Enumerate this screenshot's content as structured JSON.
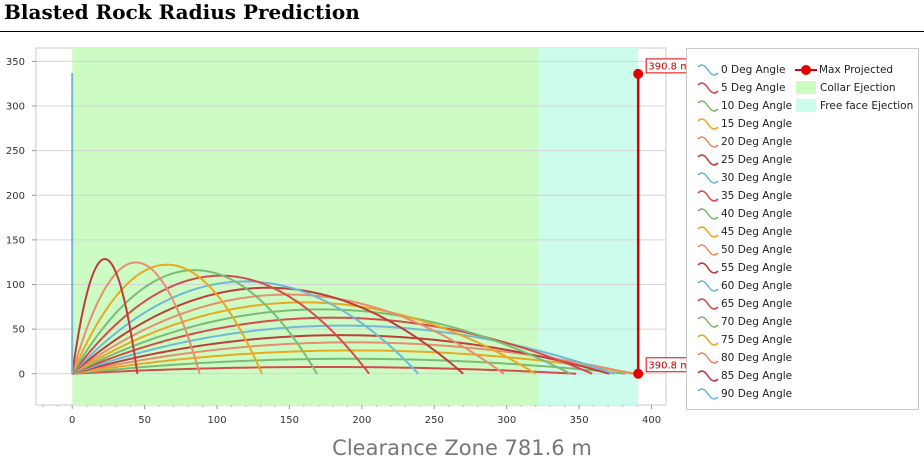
{
  "title": "Blasted Rock Radius Prediction",
  "footer": "Clearance Zone 781.6 m",
  "chart_data": {
    "type": "line",
    "xlim": [
      -25,
      410
    ],
    "ylim": [
      -35,
      365
    ],
    "x_ticks": [
      0,
      50,
      100,
      150,
      200,
      250,
      300,
      350,
      400
    ],
    "y_ticks": [
      0,
      50,
      100,
      150,
      200,
      250,
      300,
      350
    ],
    "grid": true,
    "legend_position": "right",
    "collar_ejection": {
      "name": "Collar Ejection",
      "x_range": [
        0,
        322
      ],
      "color": "#ccfcc4"
    },
    "free_face_ejection": {
      "name": "Free face Ejection",
      "x_range": [
        322,
        390.8
      ],
      "color": "#ccfcec"
    },
    "max_projected": {
      "name": "Max Projected",
      "x": 390.8,
      "y_top": 336,
      "y_bottom": 0,
      "label_top": "390.8 m",
      "label_bottom": "390.8 m",
      "color": "#e00000"
    },
    "series": [
      {
        "name": "0 Deg Angle",
        "angle": 0,
        "color": "#72b8d6",
        "range": 0
      },
      {
        "name": "5 Deg Angle",
        "angle": 5,
        "color": "#d44c4c",
        "range": 348
      },
      {
        "name": "10 Deg Angle",
        "angle": 10,
        "color": "#7cbc72",
        "range": 382
      },
      {
        "name": "15 Deg Angle",
        "angle": 15,
        "color": "#eaa820",
        "range": 390
      },
      {
        "name": "20 Deg Angle",
        "angle": 20,
        "color": "#e88e6e",
        "range": 387
      },
      {
        "name": "25 Deg Angle",
        "angle": 25,
        "color": "#c03c3c",
        "range": 371
      },
      {
        "name": "30 Deg Angle",
        "angle": 30,
        "color": "#72b8d6",
        "range": 374
      },
      {
        "name": "35 Deg Angle",
        "angle": 35,
        "color": "#d44c4c",
        "range": 359
      },
      {
        "name": "40 Deg Angle",
        "angle": 40,
        "color": "#7cbc72",
        "range": 344
      },
      {
        "name": "45 Deg Angle",
        "angle": 45,
        "color": "#eaa820",
        "range": 320
      },
      {
        "name": "50 Deg Angle",
        "angle": 50,
        "color": "#e88e6e",
        "range": 298
      },
      {
        "name": "55 Deg Angle",
        "angle": 55,
        "color": "#c03c3c",
        "range": 270
      },
      {
        "name": "60 Deg Angle",
        "angle": 60,
        "color": "#72b8d6",
        "range": 239
      },
      {
        "name": "65 Deg Angle",
        "angle": 65,
        "color": "#d44c4c",
        "range": 205
      },
      {
        "name": "70 Deg Angle",
        "angle": 70,
        "color": "#7cbc72",
        "range": 169
      },
      {
        "name": "75 Deg Angle",
        "angle": 75,
        "color": "#eaa820",
        "range": 131
      },
      {
        "name": "80 Deg Angle",
        "angle": 80,
        "color": "#e88e6e",
        "range": 88
      },
      {
        "name": "85 Deg Angle",
        "angle": 85,
        "color": "#c03c3c",
        "range": 45
      },
      {
        "name": "90 Deg Angle",
        "angle": 90,
        "color": "#72b8d6",
        "range": 0
      }
    ]
  }
}
